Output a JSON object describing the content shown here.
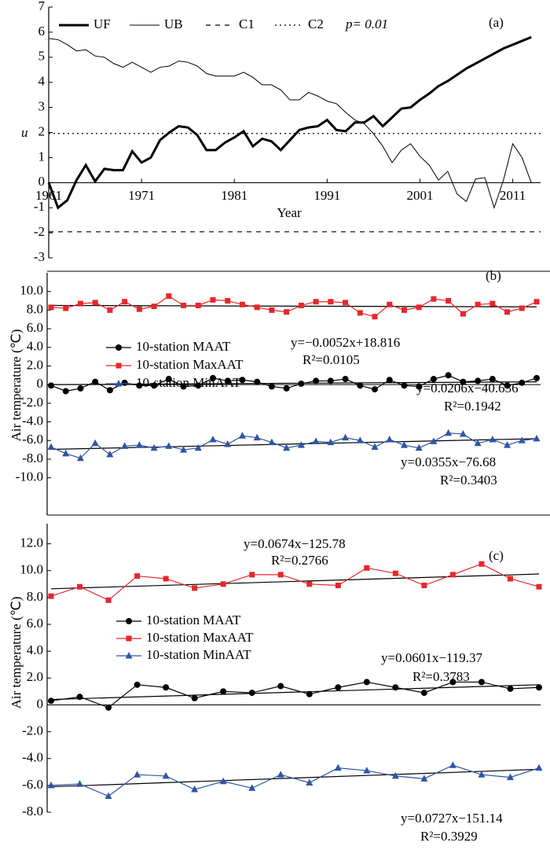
{
  "chart_data": [
    {
      "type": "line",
      "label": "(a)",
      "y_label": "u",
      "x_label": "Year",
      "annotation": "p= 0.01",
      "x": [
        1961,
        1962,
        1963,
        1964,
        1965,
        1966,
        1967,
        1968,
        1969,
        1970,
        1971,
        1972,
        1973,
        1974,
        1975,
        1976,
        1977,
        1978,
        1979,
        1980,
        1981,
        1982,
        1983,
        1984,
        1985,
        1986,
        1987,
        1988,
        1989,
        1990,
        1991,
        1992,
        1993,
        1994,
        1995,
        1996,
        1997,
        1998,
        1999,
        2000,
        2001,
        2002,
        2003,
        2004,
        2005,
        2006,
        2007,
        2008,
        2009,
        2010,
        2011,
        2012,
        2013
      ],
      "series": [
        {
          "name": "UF",
          "color": "#000000",
          "width": 3,
          "values": [
            0,
            -1.0,
            -0.7,
            0.1,
            0.7,
            0.05,
            0.55,
            0.5,
            0.5,
            1.25,
            0.8,
            1.0,
            1.7,
            2.0,
            2.25,
            2.2,
            1.9,
            1.3,
            1.3,
            1.6,
            1.8,
            2.05,
            1.45,
            1.75,
            1.65,
            1.3,
            1.7,
            2.1,
            2.2,
            2.25,
            2.5,
            2.1,
            2.05,
            2.4,
            2.4,
            2.65,
            2.25,
            2.6,
            2.95,
            3.0,
            3.3,
            3.55,
            3.85,
            4.05,
            4.3,
            4.55,
            4.75,
            4.95,
            5.15,
            5.35,
            5.5,
            5.65,
            5.8
          ]
        },
        {
          "name": "UB",
          "color": "#000000",
          "width": 1,
          "values": [
            5.75,
            5.7,
            5.5,
            5.25,
            5.3,
            5.05,
            5.0,
            4.75,
            4.6,
            4.8,
            4.6,
            4.4,
            4.6,
            4.65,
            4.85,
            4.8,
            4.65,
            4.35,
            4.25,
            4.25,
            4.25,
            4.4,
            4.2,
            3.9,
            3.9,
            3.7,
            3.3,
            3.3,
            3.6,
            3.45,
            3.25,
            3.15,
            2.8,
            2.5,
            2.35,
            1.95,
            1.45,
            0.8,
            1.3,
            1.55,
            1.05,
            0.7,
            0.1,
            0.45,
            -0.45,
            -0.75,
            0.15,
            0.2,
            -1.0,
            0.1,
            1.55,
            1.0,
            0
          ]
        }
      ],
      "reference_lines": [
        {
          "name": "C1",
          "value": -1.96,
          "dash": "6 6"
        },
        {
          "name": "C2",
          "value": 1.96,
          "dash": "2 4"
        }
      ],
      "xlim": [
        1961,
        2014
      ],
      "xticks": [
        1961,
        1971,
        1981,
        1991,
        2001,
        2011
      ],
      "ylim": [
        -3,
        7
      ],
      "yticks": [
        -3,
        -2,
        -1,
        0,
        1,
        2,
        3,
        4,
        5,
        6,
        7
      ]
    },
    {
      "type": "line",
      "label": "(b)",
      "y_label": "Air temperature (℃)",
      "series": [
        {
          "name": "10-station MAAT",
          "color": "#000000",
          "marker": "circle",
          "values": [
            -0.1,
            -0.7,
            -0.4,
            0.3,
            -0.6,
            0.2,
            -0.1,
            -0.1,
            0.6,
            -0.2,
            -0.1,
            0.7,
            0.4,
            0.5,
            0.3,
            -0.2,
            -0.4,
            0.1,
            0.4,
            0.4,
            0.6,
            -0.1,
            -0.5,
            0.5,
            -0.1,
            -0.2,
            0.6,
            1.0,
            0.3,
            0.4,
            0.6,
            -0.1,
            0.2,
            0.7
          ],
          "trend": [
            0.0,
            0.3
          ]
        },
        {
          "name": "10-station MaxAAT",
          "color": "#e8262a",
          "marker": "square",
          "values": [
            8.3,
            8.2,
            8.7,
            8.8,
            8.0,
            8.9,
            8.1,
            8.4,
            9.5,
            8.5,
            8.5,
            9.1,
            9.0,
            8.6,
            8.3,
            8.0,
            7.8,
            8.5,
            8.9,
            8.9,
            8.8,
            7.7,
            7.3,
            8.6,
            8.0,
            8.3,
            9.2,
            9.0,
            7.6,
            8.6,
            8.7,
            7.8,
            8.2,
            8.9
          ],
          "trend": [
            8.5,
            8.35
          ]
        },
        {
          "name": "10-station MinAAT",
          "color": "#2f55a4",
          "marker": "triangle",
          "values": [
            -6.7,
            -7.4,
            -7.9,
            -6.3,
            -7.5,
            -6.6,
            -6.5,
            -6.8,
            -6.6,
            -7.0,
            -6.8,
            -5.9,
            -6.4,
            -5.5,
            -5.7,
            -6.2,
            -6.8,
            -6.5,
            -6.1,
            -6.2,
            -5.7,
            -6.0,
            -6.7,
            -5.9,
            -6.5,
            -6.8,
            -6.1,
            -5.2,
            -5.3,
            -6.3,
            -5.9,
            -6.5,
            -6.0,
            -5.8
          ],
          "trend": [
            -6.95,
            -5.8
          ]
        }
      ],
      "annotations": [
        "y=−0.0052x+18.816",
        "R²=0.0105",
        "y=0.0206x−40.636",
        "R²=0.1942",
        "y=0.0355x−76.68",
        "R²=0.3403"
      ],
      "ylim": [
        -14,
        12
      ],
      "yticks": [
        {
          "value": -10,
          "label": "-10.0"
        },
        {
          "value": -8,
          "label": "-8.0"
        },
        {
          "value": -6,
          "label": "-6.0"
        },
        {
          "value": -4,
          "label": "-4.0"
        },
        {
          "value": -2,
          "label": "-2.0"
        },
        0,
        {
          "value": 2,
          "label": "2.0"
        },
        {
          "value": 4,
          "label": "4.0"
        },
        {
          "value": 6,
          "label": "6.0"
        },
        {
          "value": 8,
          "label": "8.0"
        },
        {
          "value": 10,
          "label": "10.0"
        }
      ]
    },
    {
      "type": "line",
      "label": "(c)",
      "y_label": "Air temperature (℃)",
      "series": [
        {
          "name": "10-station MAAT",
          "color": "#000000",
          "marker": "circle",
          "values": [
            0.3,
            0.6,
            -0.2,
            1.5,
            1.3,
            0.5,
            1.0,
            0.9,
            1.4,
            0.8,
            1.3,
            1.7,
            1.3,
            0.9,
            1.7,
            1.7,
            1.2,
            1.3
          ],
          "trend": [
            0.4,
            1.5
          ]
        },
        {
          "name": "10-station MaxAAT",
          "color": "#e8262a",
          "marker": "square",
          "values": [
            8.1,
            8.8,
            7.8,
            9.6,
            9.4,
            8.7,
            9.0,
            9.7,
            9.7,
            9.0,
            8.9,
            10.2,
            9.8,
            8.9,
            9.7,
            10.5,
            9.4,
            8.8
          ],
          "trend": [
            8.65,
            9.75
          ]
        },
        {
          "name": "10-station MinAAT",
          "color": "#2f55a4",
          "marker": "triangle",
          "values": [
            -6.0,
            -5.9,
            -6.8,
            -5.2,
            -5.3,
            -6.3,
            -5.7,
            -6.2,
            -5.2,
            -5.8,
            -4.7,
            -4.9,
            -5.3,
            -5.5,
            -4.5,
            -5.2,
            -5.4,
            -4.7
          ],
          "trend": [
            -6.1,
            -4.8
          ]
        }
      ],
      "annotations": [
        "y=0.0674x−125.78",
        "R²=0.2766",
        "y=0.0601x−119.37",
        "R²=0.3783",
        "y=0.0727x−151.14",
        "R²=0.3929"
      ],
      "ylim": [
        -8,
        13.5
      ],
      "yticks": [
        {
          "value": -8,
          "label": "-8.0"
        },
        {
          "value": -6,
          "label": "-6.0"
        },
        {
          "value": -4,
          "label": "-4.0"
        },
        {
          "value": -2,
          "label": "-2.0"
        },
        0,
        {
          "value": 2,
          "label": "2.0"
        },
        {
          "value": 4,
          "label": "4.0"
        },
        {
          "value": 6,
          "label": "6.0"
        },
        {
          "value": 8,
          "label": "8.0"
        },
        {
          "value": 10,
          "label": "10.0"
        },
        {
          "value": 12,
          "label": "12.0"
        }
      ]
    }
  ]
}
